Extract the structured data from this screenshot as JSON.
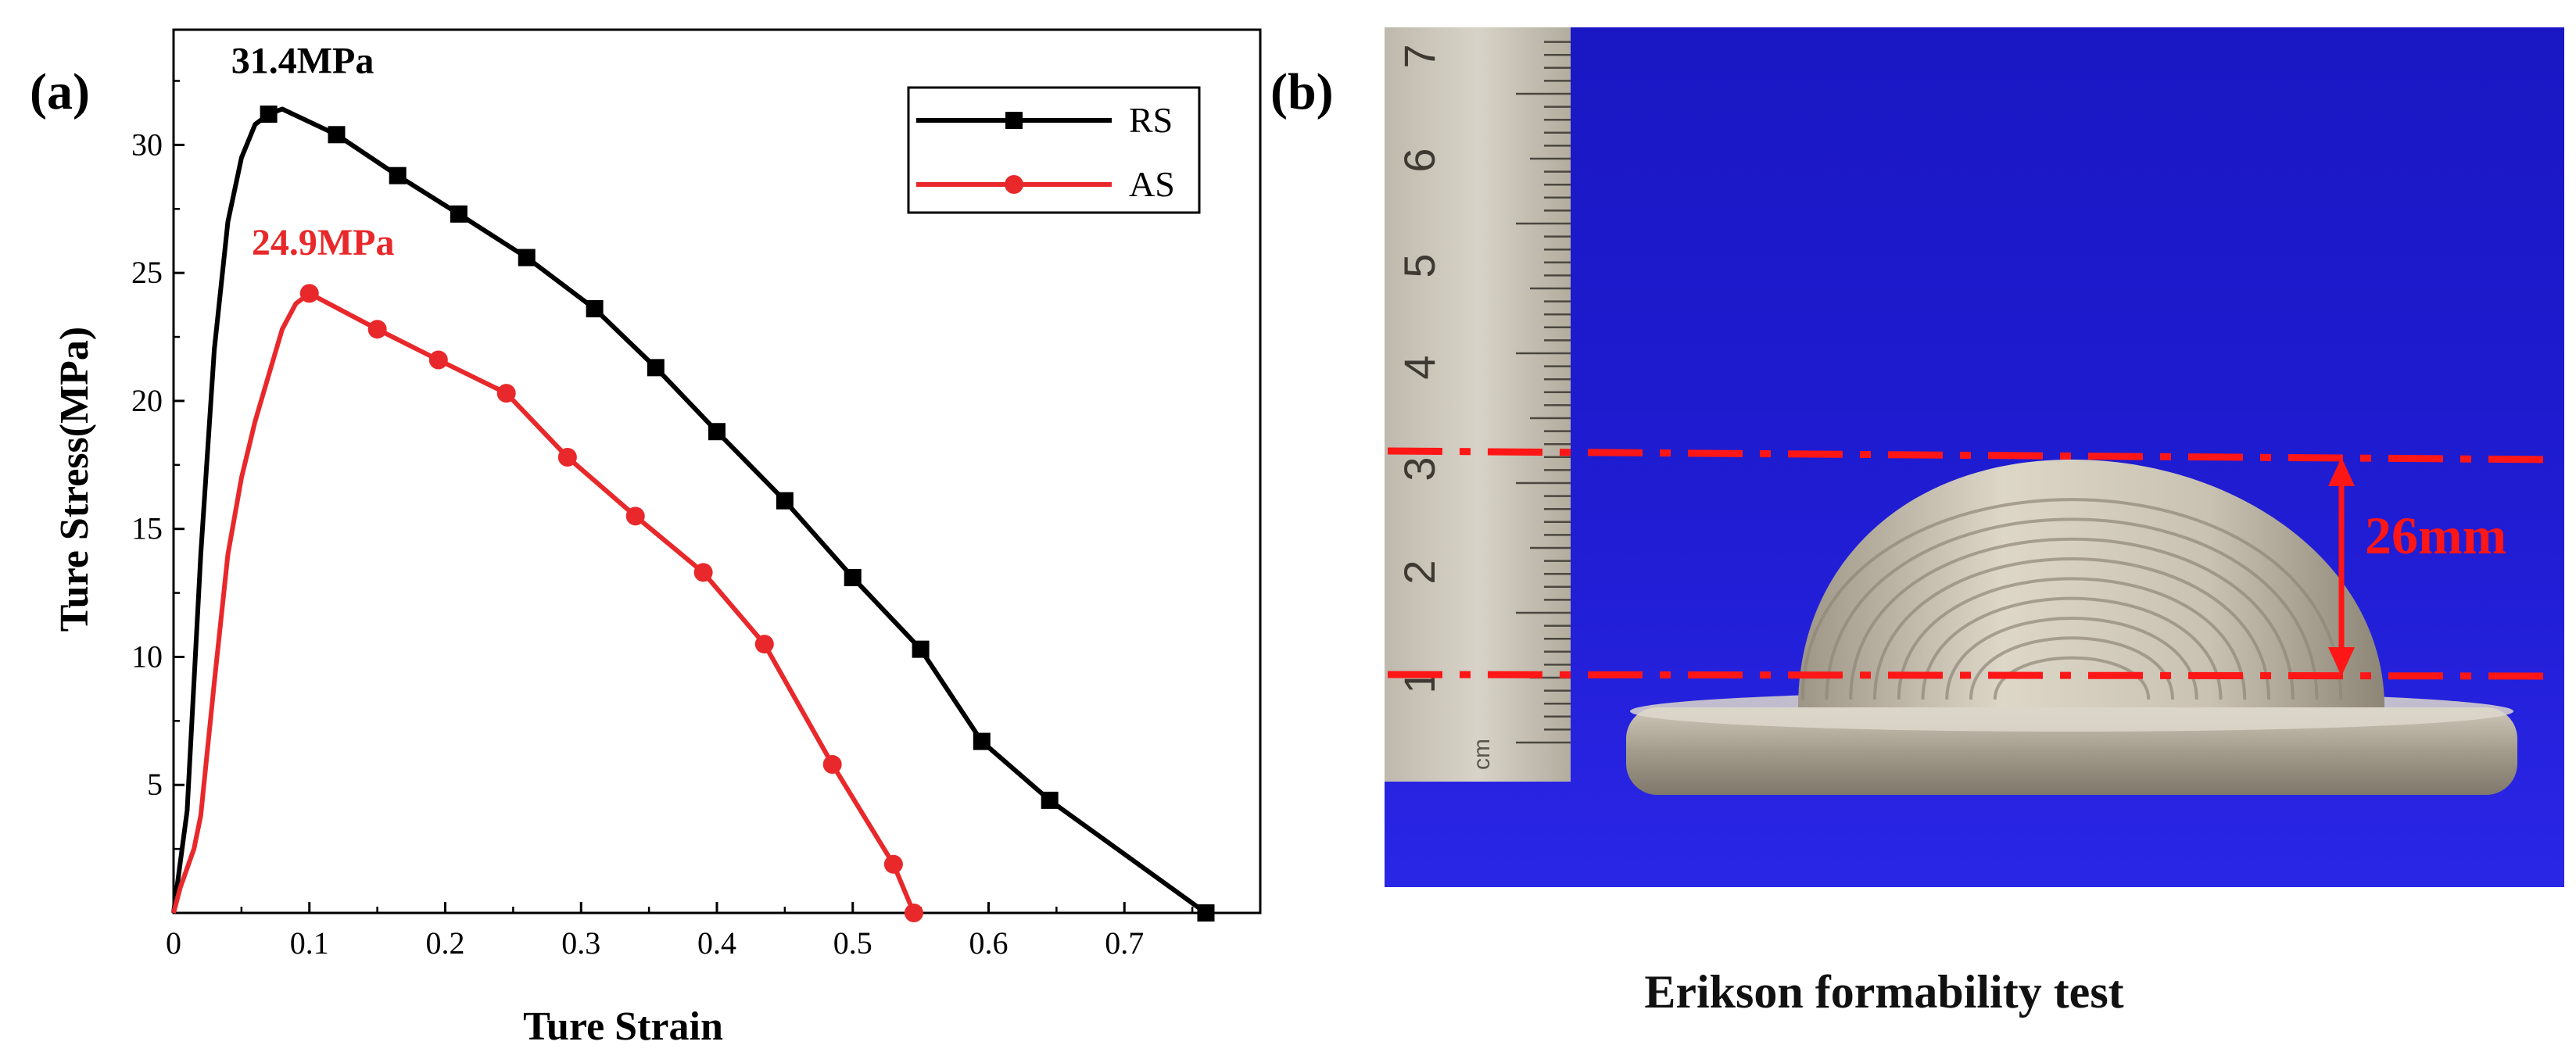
{
  "panel_a_label": "(a)",
  "panel_b_label": "(b)",
  "chart_data": {
    "type": "line",
    "xlabel": "Ture Strain",
    "ylabel": "Ture Stress(MPa)",
    "xlim": [
      0,
      0.8
    ],
    "ylim": [
      0,
      34.5
    ],
    "xticks": [
      0,
      0.1,
      0.2,
      0.3,
      0.4,
      0.5,
      0.6,
      0.7
    ],
    "xtick_labels": [
      "0",
      "0.1",
      "0.2",
      "0.3",
      "0.4",
      "0.5",
      "0.6",
      "0.7"
    ],
    "yticks": [
      5,
      10,
      15,
      20,
      25,
      30
    ],
    "ytick_labels": [
      "5",
      "10",
      "15",
      "20",
      "25",
      "30"
    ],
    "grid": false,
    "legend_position": "top-right",
    "series": [
      {
        "name": "RS",
        "color": "#000000",
        "marker": "square",
        "line": [
          [
            0,
            0
          ],
          [
            0.01,
            4
          ],
          [
            0.02,
            14
          ],
          [
            0.03,
            22
          ],
          [
            0.04,
            27
          ],
          [
            0.05,
            29.5
          ],
          [
            0.06,
            30.8
          ],
          [
            0.07,
            31.2
          ],
          [
            0.08,
            31.4
          ],
          [
            0.12,
            30.4
          ],
          [
            0.165,
            28.8
          ],
          [
            0.21,
            27.3
          ],
          [
            0.26,
            25.6
          ],
          [
            0.31,
            23.6
          ],
          [
            0.355,
            21.3
          ],
          [
            0.4,
            18.8
          ],
          [
            0.45,
            16.1
          ],
          [
            0.5,
            13.1
          ],
          [
            0.55,
            10.3
          ],
          [
            0.595,
            6.7
          ],
          [
            0.645,
            4.4
          ],
          [
            0.76,
            0
          ]
        ],
        "markers": [
          [
            0.07,
            31.2
          ],
          [
            0.12,
            30.4
          ],
          [
            0.165,
            28.8
          ],
          [
            0.21,
            27.3
          ],
          [
            0.26,
            25.6
          ],
          [
            0.31,
            23.6
          ],
          [
            0.355,
            21.3
          ],
          [
            0.4,
            18.8
          ],
          [
            0.45,
            16.1
          ],
          [
            0.5,
            13.1
          ],
          [
            0.55,
            10.3
          ],
          [
            0.595,
            6.7
          ],
          [
            0.645,
            4.4
          ],
          [
            0.76,
            0
          ]
        ]
      },
      {
        "name": "AS",
        "color": "#e8282a",
        "marker": "circle",
        "line": [
          [
            0,
            0
          ],
          [
            0.005,
            1
          ],
          [
            0.015,
            2.5
          ],
          [
            0.02,
            3.8
          ],
          [
            0.03,
            9
          ],
          [
            0.04,
            14
          ],
          [
            0.05,
            17
          ],
          [
            0.06,
            19.2
          ],
          [
            0.07,
            21
          ],
          [
            0.08,
            22.8
          ],
          [
            0.09,
            23.8
          ],
          [
            0.1,
            24.2
          ],
          [
            0.15,
            22.8
          ],
          [
            0.195,
            21.6
          ],
          [
            0.245,
            20.3
          ],
          [
            0.29,
            17.8
          ],
          [
            0.34,
            15.5
          ],
          [
            0.39,
            13.3
          ],
          [
            0.435,
            10.5
          ],
          [
            0.485,
            5.8
          ],
          [
            0.53,
            1.9
          ],
          [
            0.545,
            0
          ]
        ],
        "markers": [
          [
            0.1,
            24.2
          ],
          [
            0.15,
            22.8
          ],
          [
            0.195,
            21.6
          ],
          [
            0.245,
            20.3
          ],
          [
            0.29,
            17.8
          ],
          [
            0.34,
            15.5
          ],
          [
            0.39,
            13.3
          ],
          [
            0.435,
            10.5
          ],
          [
            0.485,
            5.8
          ],
          [
            0.53,
            1.9
          ],
          [
            0.545,
            0
          ]
        ]
      }
    ],
    "annotations": [
      {
        "text": "31.4MPa",
        "color": "#000000",
        "x": 0.095,
        "y": 32.8
      },
      {
        "text": "24.9MPa",
        "color": "#e8282a",
        "x": 0.11,
        "y": 25.7
      }
    ]
  },
  "photo": {
    "background_color": "#1c18c8",
    "ruler_numbers": [
      "7",
      "6",
      "5",
      "4",
      "3",
      "2",
      "1"
    ],
    "ruler_unit": "cm",
    "height_label": "26mm",
    "caption": "Erikson formability test"
  }
}
